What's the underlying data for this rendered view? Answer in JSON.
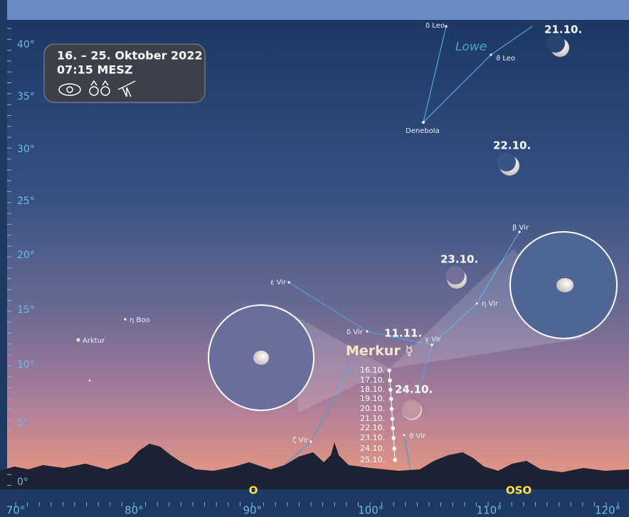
{
  "info": {
    "date": "16. – 25. Oktober 2022",
    "time": "07:15 MESZ"
  },
  "altitude_ticks": [
    "0°",
    "5°",
    "10°",
    "15°",
    "20°",
    "25°",
    "30°",
    "35°",
    "40°"
  ],
  "azimuth_ticks": [
    "70°",
    "80°",
    "90°",
    "100°",
    "110°",
    "120°"
  ],
  "directions": [
    "O",
    "OSO"
  ],
  "constellation": "Lowe",
  "stars": [
    "δ Leo",
    "ϑ Leo",
    "Denebola",
    "β Vir",
    "η Vir",
    "γ Vir",
    "δ Vir",
    "ε Vir",
    "η Boo",
    "Arktur",
    "ζ Vir",
    "ϑ Vir"
  ],
  "moon_dates": [
    "21.10.",
    "22.10.",
    "23.10.",
    "24.10."
  ],
  "mercury": {
    "label": "Merkur ☿",
    "conjunction_date": "11.11.",
    "dates": [
      "16.10.",
      "17.10.",
      "18.10.",
      "19.10.",
      "20.10.",
      "21.10.",
      "22.10.",
      "23.10.",
      "24.10.",
      "25.10."
    ]
  }
}
